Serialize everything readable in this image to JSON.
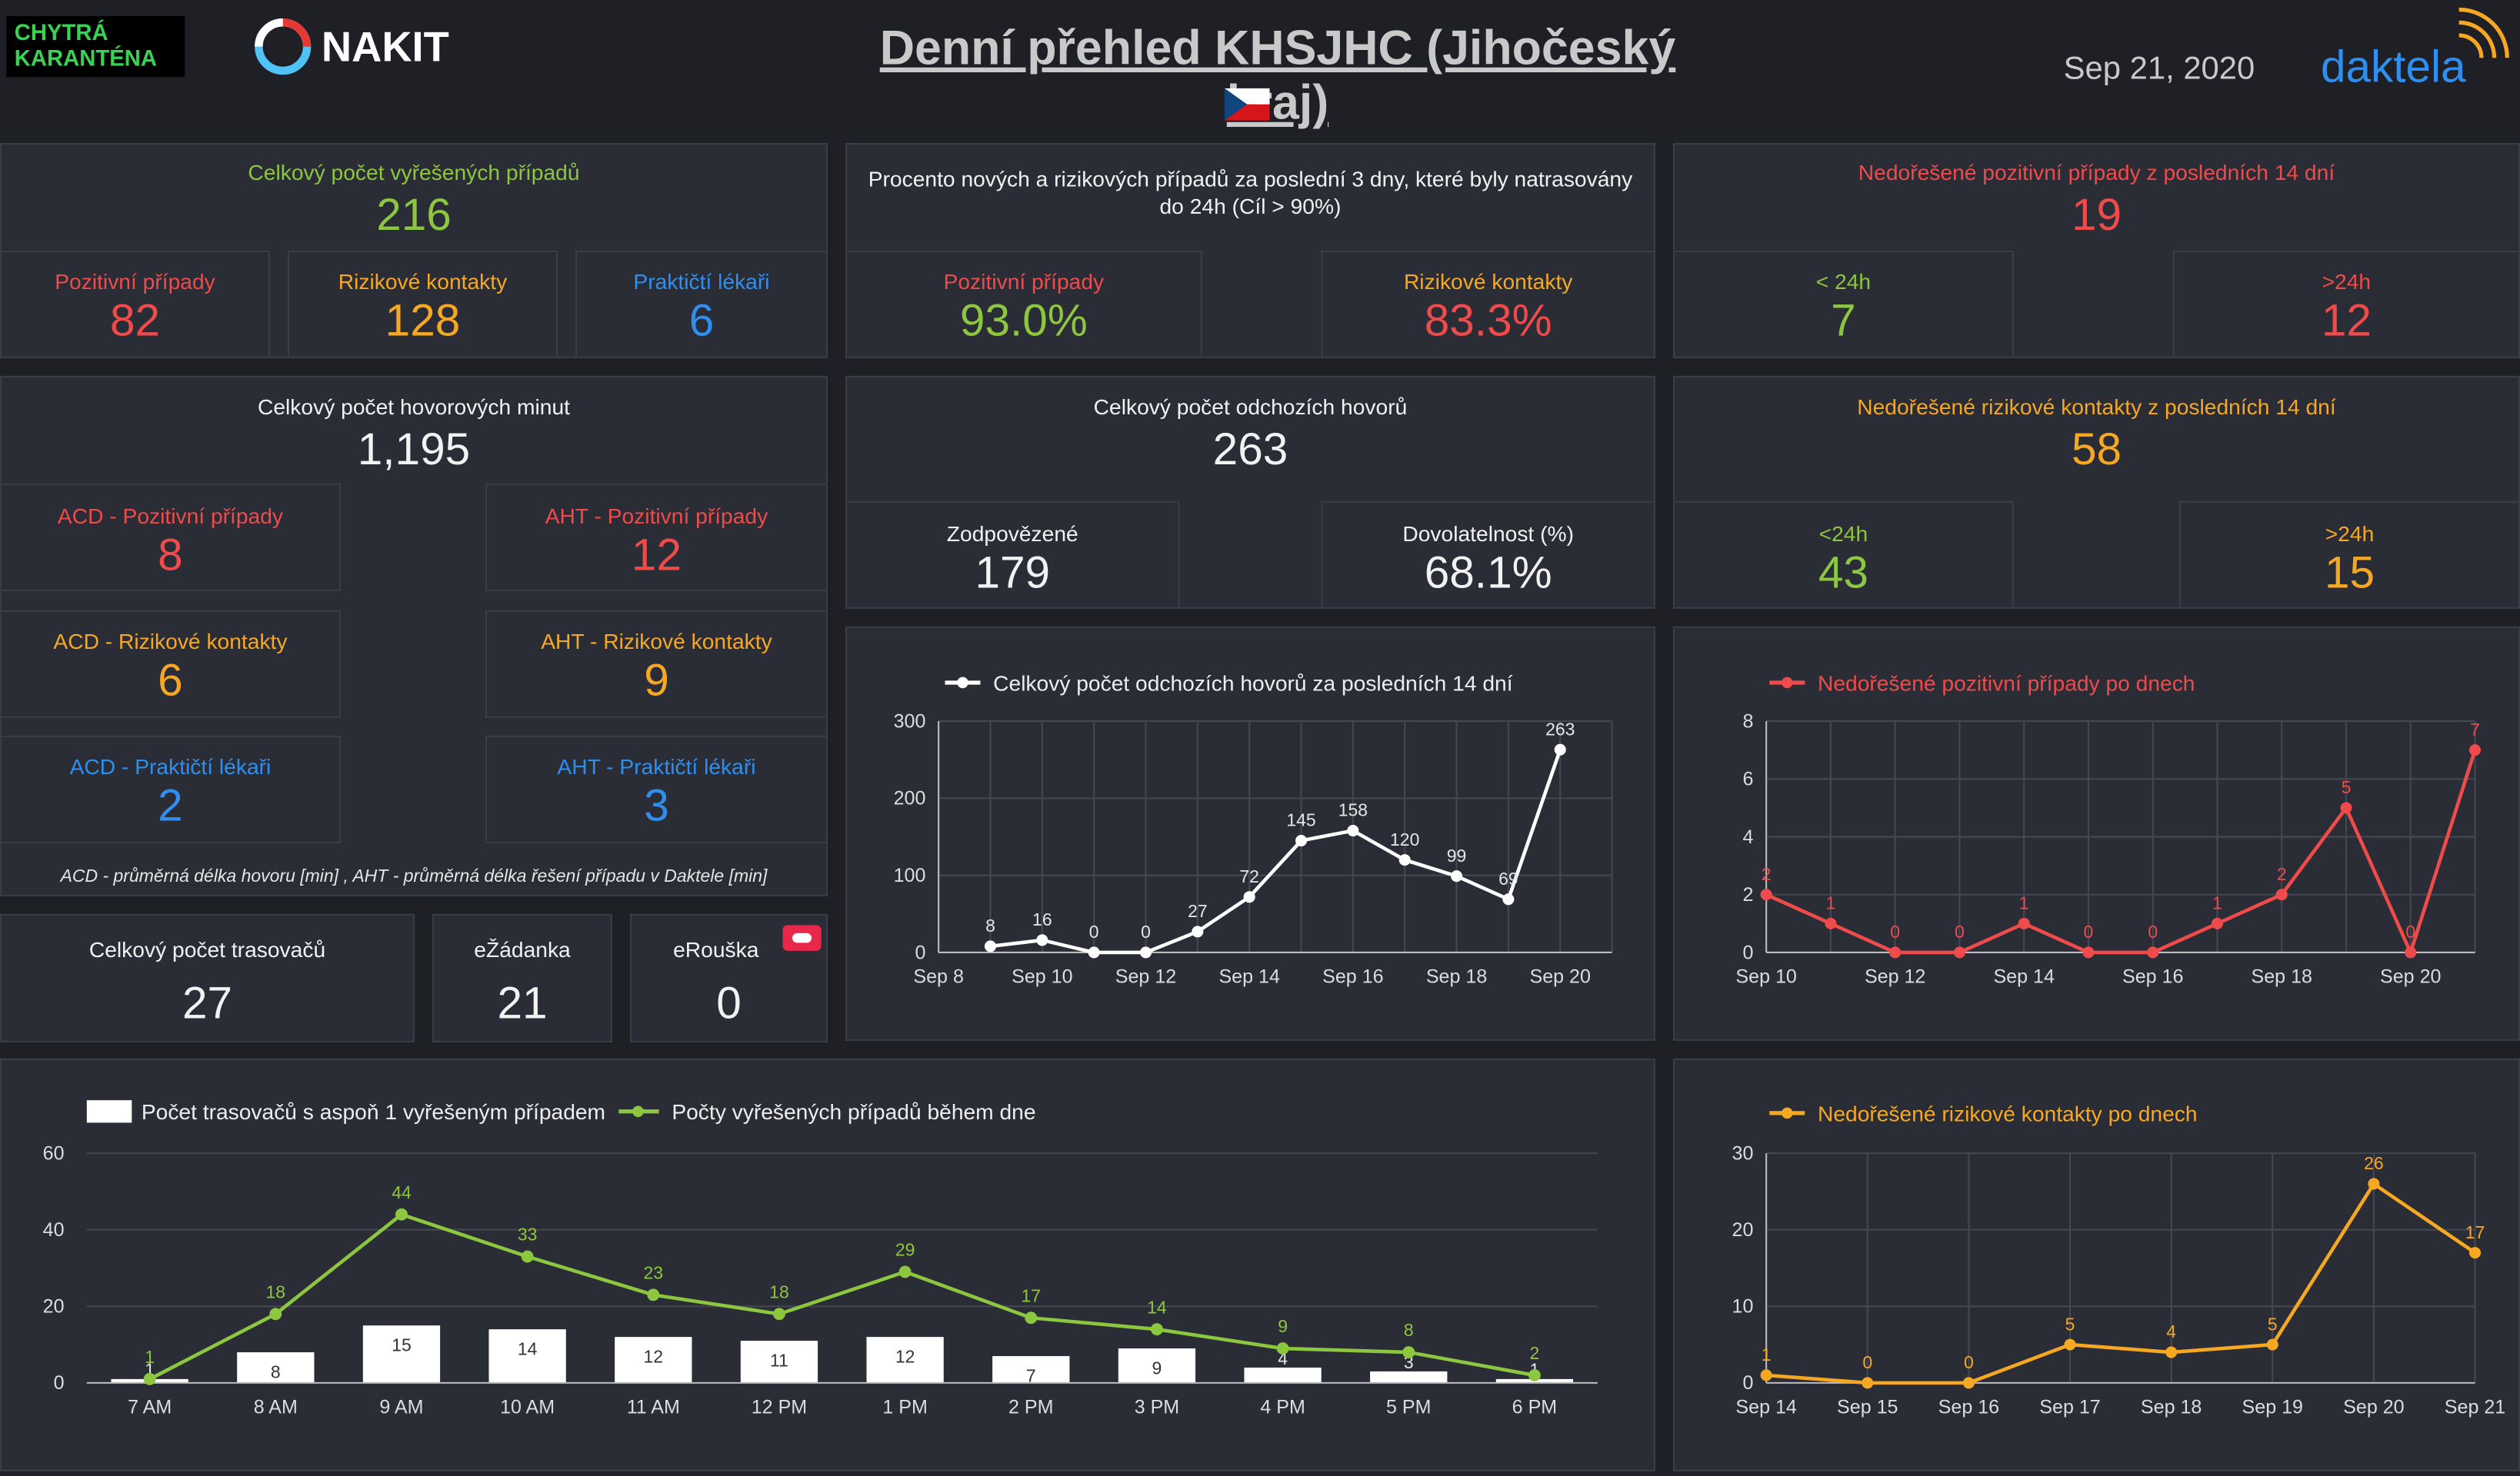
{
  "header": {
    "badge_line1": "CHYTRÁ",
    "badge_line2": "KARANTÉNA",
    "nakit_label": "NAKIT",
    "title": "Denní přehled KHSJHC (Jihočeský kraj)",
    "date": "Sep 21, 2020",
    "brand": "daktela",
    "flag_icon": "czech-flag"
  },
  "colors": {
    "green": "#8dc63f",
    "red": "#ef4b4b",
    "blue": "#2f8fef",
    "orange": "#f7a823",
    "bg": "#1f2025",
    "panel": "#2a2d36"
  },
  "resolved": {
    "title": "Celkový počet vyřešených případů",
    "value": "216",
    "positive_label": "Pozitivní případy",
    "positive_value": "82",
    "risk_label": "Rizikové kontakty",
    "risk_value": "128",
    "gp_label": "Praktičtí lékaři",
    "gp_value": "6"
  },
  "traced": {
    "title": "Procento nových a rizikových případů za poslední 3 dny, které byly natrasovány",
    "title2": "do 24h (Cíl > 90%)",
    "positive_label": "Pozitivní případy",
    "positive_value": "93.0%",
    "risk_label": "Rizikové kontakty",
    "risk_value": "83.3%"
  },
  "unresolved_pos": {
    "title": "Nedořešené pozitivní případy z posledních 14 dní",
    "value": "19",
    "lt_label": "< 24h",
    "lt_value": "7",
    "gt_label": ">24h",
    "gt_value": "12"
  },
  "minutes": {
    "title": "Celkový počet hovorových minut",
    "value": "1,195",
    "acd_pos_label": "ACD - Pozitivní případy",
    "acd_pos_value": "8",
    "aht_pos_label": "AHT - Pozitivní případy",
    "aht_pos_value": "12",
    "acd_risk_label": "ACD - Rizikové kontakty",
    "acd_risk_value": "6",
    "aht_risk_label": "AHT - Rizikové kontakty",
    "aht_risk_value": "9",
    "acd_gp_label": "ACD - Praktičtí lékaři",
    "acd_gp_value": "2",
    "aht_gp_label": "AHT - Praktičtí lékaři",
    "aht_gp_value": "3",
    "footnote": "ACD - průměrná délka hovoru [min] , AHT - průměrná délka řešení případu v Daktele [min]"
  },
  "calls": {
    "title": "Celkový počet odchozích hovorů",
    "value": "263",
    "answered_label": "Zodpovězené",
    "answered_value": "179",
    "reach_label": "Dovolatelnost (%)",
    "reach_value": "68.1%"
  },
  "unresolved_risk": {
    "title": "Nedořešené rizikové kontakty z posledních 14 dní",
    "value": "58",
    "lt_label": "<24h",
    "lt_value": "43",
    "gt_label": ">24h",
    "gt_value": "15"
  },
  "tracers": {
    "label": "Celkový počet trasovačů",
    "value": "27"
  },
  "ezadanka": {
    "label": "eŽádanka",
    "value": "21"
  },
  "erouska": {
    "label": "eRouška",
    "value": "0",
    "icon": "erouska-icon"
  },
  "chart_data": [
    {
      "type": "line",
      "title": "Celkový počet odchozích hovorů za posledních 14 dní",
      "x": [
        "Sep 8",
        "Sep 9",
        "Sep 10",
        "Sep 11",
        "Sep 12",
        "Sep 13",
        "Sep 14",
        "Sep 15",
        "Sep 16",
        "Sep 17",
        "Sep 18",
        "Sep 19",
        "Sep 20",
        "Sep 21"
      ],
      "xticks": [
        "Sep 8",
        "Sep 10",
        "Sep 12",
        "Sep 14",
        "Sep 16",
        "Sep 18",
        "Sep 20"
      ],
      "series": [
        {
          "name": "Celkový počet odchozích hovorů za posledních 14 dní",
          "color": "#ffffff",
          "values": [
            null,
            8,
            16,
            0,
            0,
            27,
            72,
            145,
            158,
            120,
            99,
            69,
            263,
            null
          ]
        }
      ],
      "ylim": [
        0,
        300
      ],
      "yticks": [
        0,
        100,
        200,
        300
      ],
      "grid": true,
      "legend": "top"
    },
    {
      "type": "line",
      "title": "Nedořešené pozitivní případy po dnech",
      "x": [
        "Sep 10",
        "Sep 11",
        "Sep 12",
        "Sep 13",
        "Sep 14",
        "Sep 15",
        "Sep 16",
        "Sep 17",
        "Sep 18",
        "Sep 19",
        "Sep 20",
        "Sep 21"
      ],
      "xticks": [
        "Sep 10",
        "Sep 12",
        "Sep 14",
        "Sep 16",
        "Sep 18",
        "Sep 20"
      ],
      "series": [
        {
          "name": "Nedořešené pozitivní případy po dnech",
          "color": "#ef4b4b",
          "values": [
            2,
            1,
            0,
            0,
            1,
            0,
            0,
            1,
            2,
            5,
            0,
            7
          ]
        }
      ],
      "ylim": [
        0,
        8
      ],
      "yticks": [
        0,
        2,
        4,
        6,
        8
      ],
      "grid": true,
      "legend": "top"
    },
    {
      "type": "bar",
      "x": [
        "7 AM",
        "8 AM",
        "9 AM",
        "10 AM",
        "11 AM",
        "12 PM",
        "1 PM",
        "2 PM",
        "3 PM",
        "4 PM",
        "5 PM",
        "6 PM"
      ],
      "series": [
        {
          "name": "Počet trasovačů s aspoň 1 vyřešeným případem",
          "type": "bar",
          "color": "#ffffff",
          "values": [
            1,
            8,
            15,
            14,
            12,
            11,
            12,
            7,
            9,
            4,
            3,
            1
          ]
        },
        {
          "name": "Počty vyřešených případů během dne",
          "type": "line",
          "color": "#8dc63f",
          "values": [
            1,
            18,
            44,
            33,
            23,
            18,
            29,
            17,
            14,
            9,
            8,
            2
          ]
        }
      ],
      "ylim": [
        0,
        60
      ],
      "yticks": [
        0,
        20,
        40,
        60
      ],
      "grid": true,
      "legend": "top-left"
    },
    {
      "type": "line",
      "title": "Nedořešené rizikové kontakty po dnech",
      "x": [
        "Sep 14",
        "Sep 15",
        "Sep 16",
        "Sep 17",
        "Sep 18",
        "Sep 19",
        "Sep 20",
        "Sep 21"
      ],
      "series": [
        {
          "name": "Nedořešené rizikové kontakty po dnech",
          "color": "#f7a823",
          "values": [
            1,
            0,
            0,
            5,
            4,
            5,
            26,
            17
          ]
        }
      ],
      "ylim": [
        0,
        30
      ],
      "yticks": [
        0,
        10,
        20,
        30
      ],
      "grid": true,
      "legend": "top"
    }
  ]
}
